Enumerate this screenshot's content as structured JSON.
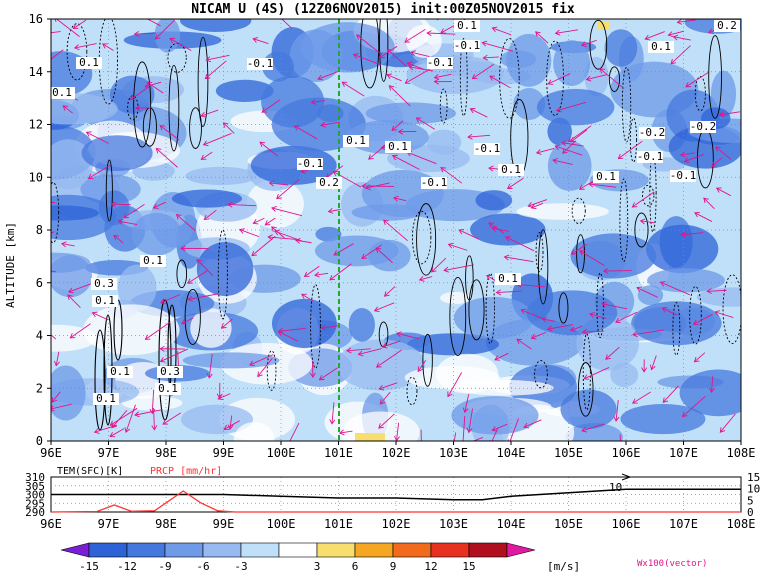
{
  "title": "NICAM U (4S) (12Z06NOV2015) init:00Z05NOV2015 fix",
  "chart_data": [
    {
      "type": "heatmap",
      "title": "NICAM U (4S) (12Z06NOV2015) init:00Z05NOV2015 fix",
      "ylabel": "ALTITUDE [km]",
      "xlim": [
        96,
        108
      ],
      "ylim": [
        0,
        16
      ],
      "x_ticks": [
        "96E",
        "97E",
        "98E",
        "99E",
        "100E",
        "101E",
        "102E",
        "103E",
        "104E",
        "105E",
        "106E",
        "107E",
        "108E"
      ],
      "y_ticks": [
        "0",
        "2",
        "4",
        "6",
        "8",
        "10",
        "12",
        "14",
        "16"
      ],
      "marker_longitude": 101,
      "contour_labels": [
        "0.1",
        "0.1",
        "-0.1",
        "0.1",
        "-0.1",
        "0.1",
        "0.2",
        "-0.1",
        "-0.1",
        "0.1",
        "-0.1",
        "-0.1",
        "0.1",
        "-0.2",
        "-0.2",
        "-0.1",
        "0.1",
        "-0.1",
        "0.1",
        "0.1",
        "0.2",
        "0.1",
        "0.1",
        "0.1",
        "0.3",
        "0.1",
        "0.3",
        "0.1"
      ],
      "grid": true
    },
    {
      "type": "line",
      "series": [
        {
          "name": "TEM(SFC)[K]",
          "color": "#000000",
          "x": [
            96,
            97,
            98,
            99,
            100,
            101,
            102,
            103,
            103.5,
            104,
            104.5,
            105,
            105.5,
            106,
            107,
            108
          ],
          "values": [
            300,
            300,
            300,
            300,
            299,
            298,
            298,
            297,
            297,
            299,
            300,
            301,
            302,
            303,
            303,
            303
          ]
        },
        {
          "name": "PRCP [mm/hr]",
          "color": "#ff3333",
          "x": [
            96,
            96.8,
            97.1,
            97.4,
            97.8,
            98.3,
            98.6,
            98.9,
            99.2,
            100,
            108
          ],
          "values": [
            0,
            0.2,
            3,
            0.3,
            0.5,
            9,
            4,
            0.5,
            0,
            0,
            0
          ]
        }
      ],
      "y_left_ticks": [
        "310",
        "305",
        "300",
        "295",
        "290"
      ],
      "y_right_ticks": [
        "15",
        "10",
        "5",
        "0"
      ],
      "x_ticks": [
        "96E",
        "97E",
        "98E",
        "99E",
        "100E",
        "101E",
        "102E",
        "103E",
        "104E",
        "105E",
        "106E",
        "107E",
        "108E"
      ],
      "annotation": "10"
    }
  ],
  "colorbar": {
    "ticks": [
      "-15",
      "-12",
      "-9",
      "-6",
      "-3",
      "3",
      "6",
      "9",
      "12",
      "15"
    ],
    "unit": "[m/s]",
    "colors": [
      "#7a1fd6",
      "#2e63d8",
      "#4578de",
      "#6e9ae8",
      "#97bbf0",
      "#bfe0f8",
      "#ffffff",
      "#f8de6e",
      "#f5a623",
      "#f26a1b",
      "#e8311e",
      "#b0101e",
      "#e01aa0"
    ]
  },
  "vector_legend": "Wx100(vector)",
  "colors": {
    "vector": "#e0158c",
    "marker": "#22aa22",
    "contour": "#000000",
    "temp": "#000000",
    "prcp": "#ff3333"
  }
}
